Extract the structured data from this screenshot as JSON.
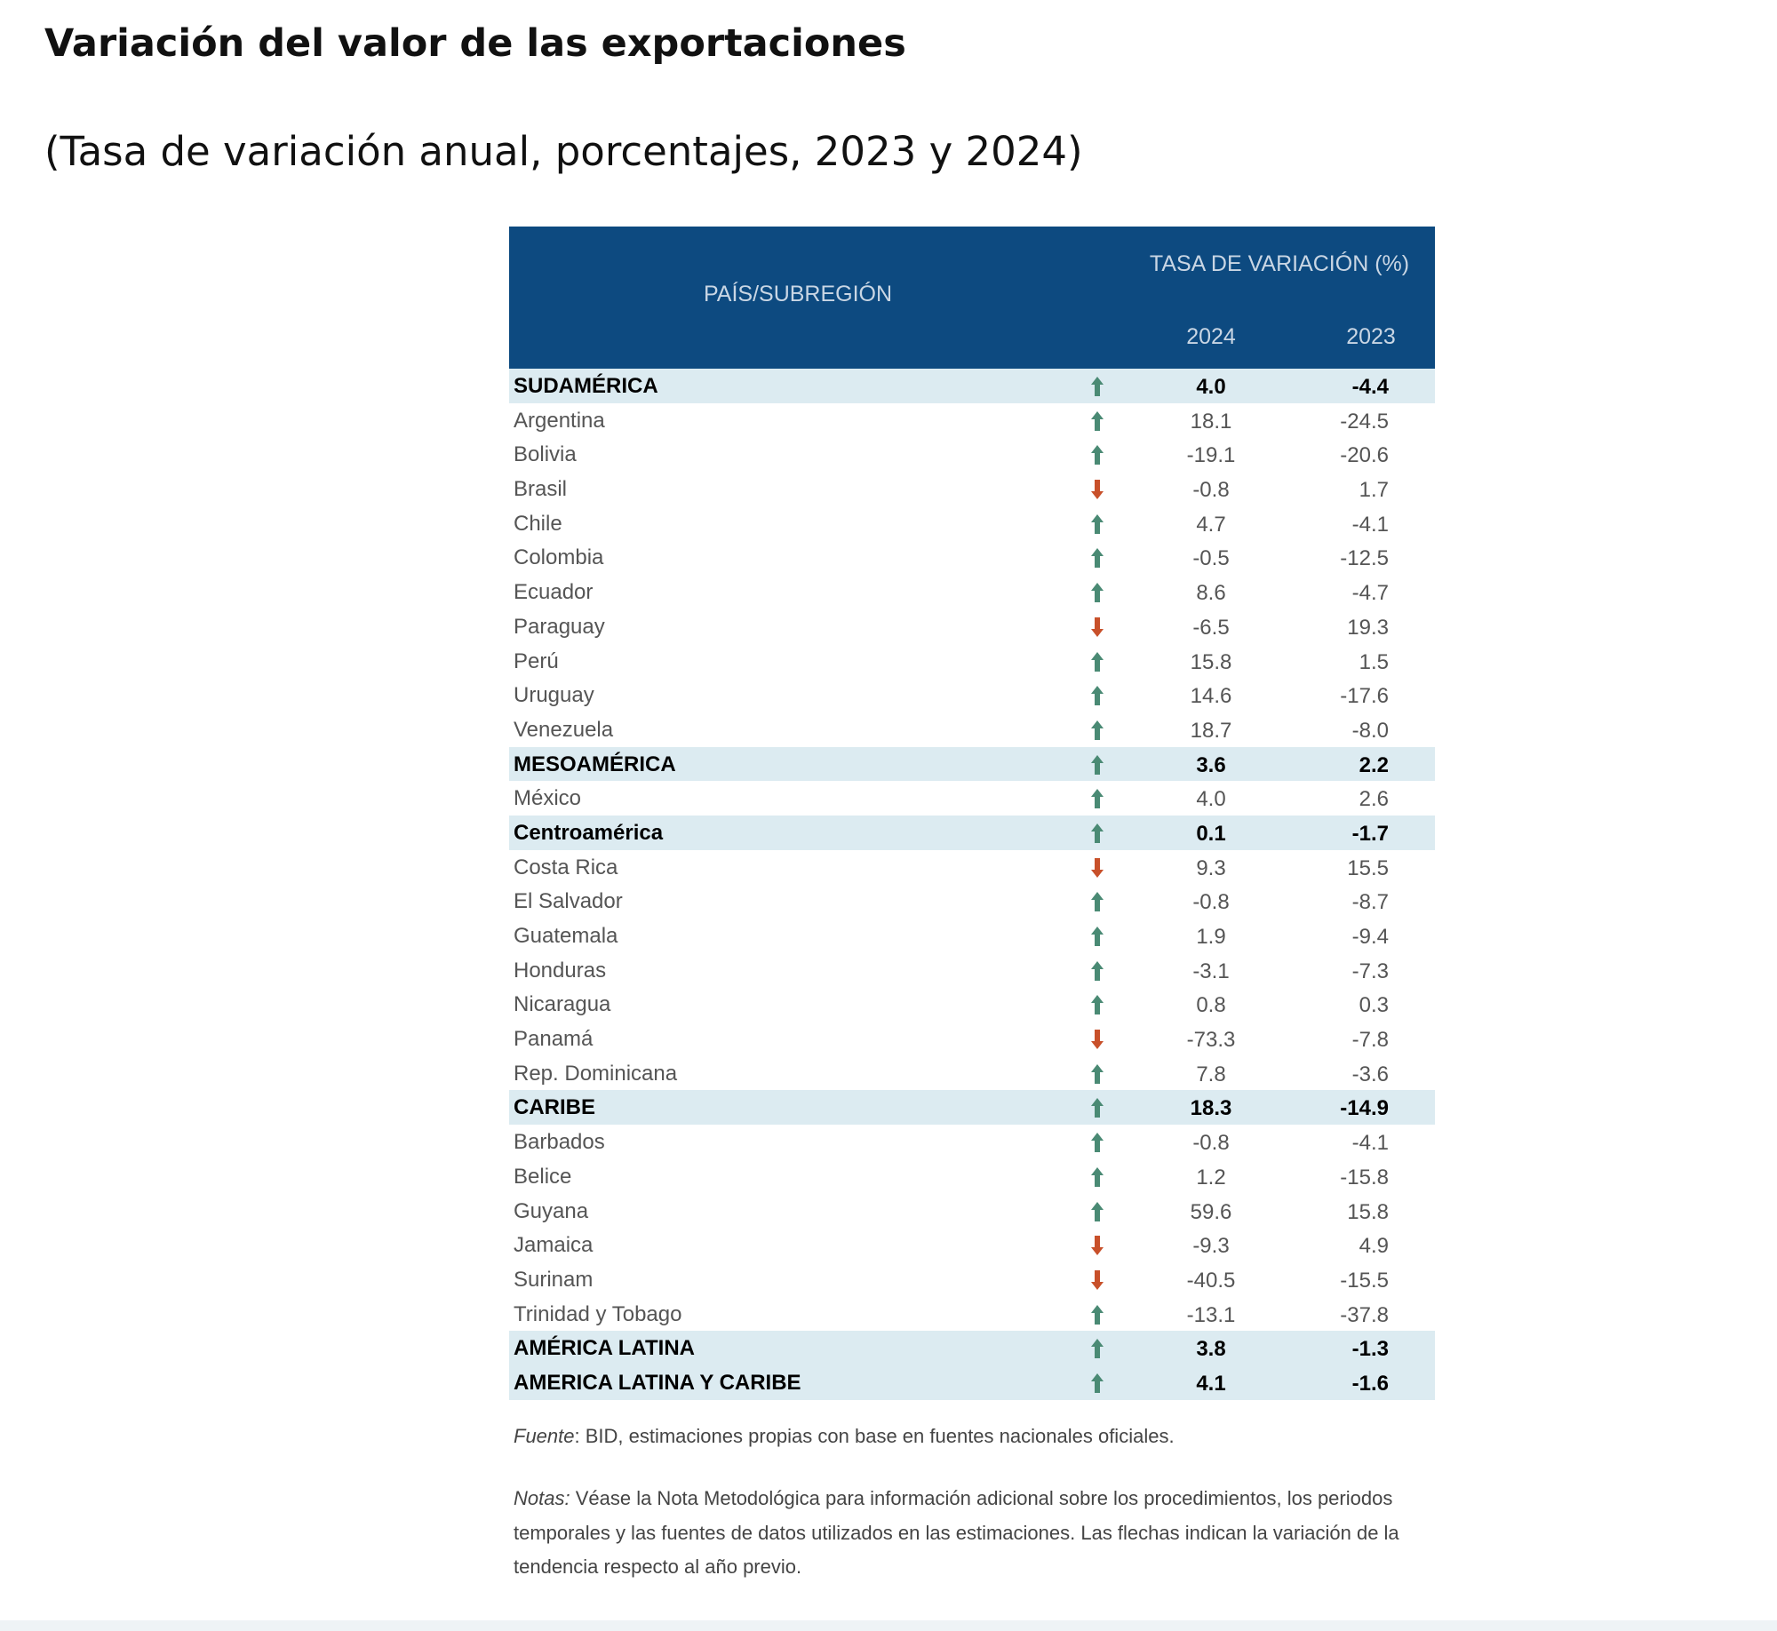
{
  "title": "Variación del valor de las exportaciones",
  "subtitle": "(Tasa de variación anual, porcentajes, 2023 y 2024)",
  "table": {
    "header": {
      "country": "PAÍS/SUBREGIÓN",
      "rate": "TASA DE VARIACIÓN (%)",
      "year_2024": "2024",
      "year_2023": "2023"
    },
    "colors": {
      "header_bg": "#0d4a80",
      "highlight_bg": "#dcebf1",
      "up": "#4a8a74",
      "down": "#c8502a"
    },
    "rows": [
      {
        "name": "SUDAMÉRICA",
        "trend": "up",
        "v2024": "4.0",
        "v2023": "-4.4",
        "highlight": true
      },
      {
        "name": "Argentina",
        "trend": "up",
        "v2024": "18.1",
        "v2023": "-24.5"
      },
      {
        "name": "Bolivia",
        "trend": "up",
        "v2024": "-19.1",
        "v2023": "-20.6"
      },
      {
        "name": "Brasil",
        "trend": "down",
        "v2024": "-0.8",
        "v2023": "1.7"
      },
      {
        "name": "Chile",
        "trend": "up",
        "v2024": "4.7",
        "v2023": "-4.1"
      },
      {
        "name": "Colombia",
        "trend": "up",
        "v2024": "-0.5",
        "v2023": "-12.5"
      },
      {
        "name": "Ecuador",
        "trend": "up",
        "v2024": "8.6",
        "v2023": "-4.7"
      },
      {
        "name": "Paraguay",
        "trend": "down",
        "v2024": "-6.5",
        "v2023": "19.3"
      },
      {
        "name": "Perú",
        "trend": "up",
        "v2024": "15.8",
        "v2023": "1.5"
      },
      {
        "name": "Uruguay",
        "trend": "up",
        "v2024": "14.6",
        "v2023": "-17.6"
      },
      {
        "name": "Venezuela",
        "trend": "up",
        "v2024": "18.7",
        "v2023": "-8.0"
      },
      {
        "name": "MESOAMÉRICA",
        "trend": "up",
        "v2024": "3.6",
        "v2023": "2.2",
        "highlight": true
      },
      {
        "name": "México",
        "trend": "up",
        "v2024": "4.0",
        "v2023": "2.6"
      },
      {
        "name": "Centroamérica",
        "trend": "up",
        "v2024": "0.1",
        "v2023": "-1.7",
        "highlight": true
      },
      {
        "name": "Costa Rica",
        "trend": "down",
        "v2024": "9.3",
        "v2023": "15.5"
      },
      {
        "name": "El Salvador",
        "trend": "up",
        "v2024": "-0.8",
        "v2023": "-8.7"
      },
      {
        "name": "Guatemala",
        "trend": "up",
        "v2024": "1.9",
        "v2023": "-9.4"
      },
      {
        "name": "Honduras",
        "trend": "up",
        "v2024": "-3.1",
        "v2023": "-7.3"
      },
      {
        "name": "Nicaragua",
        "trend": "up",
        "v2024": "0.8",
        "v2023": "0.3"
      },
      {
        "name": "Panamá",
        "trend": "down",
        "v2024": "-73.3",
        "v2023": "-7.8"
      },
      {
        "name": "Rep. Dominicana",
        "trend": "up",
        "v2024": "7.8",
        "v2023": "-3.6"
      },
      {
        "name": "CARIBE",
        "trend": "up",
        "v2024": "18.3",
        "v2023": "-14.9",
        "highlight": true
      },
      {
        "name": "Barbados",
        "trend": "up",
        "v2024": "-0.8",
        "v2023": "-4.1"
      },
      {
        "name": "Belice",
        "trend": "up",
        "v2024": "1.2",
        "v2023": "-15.8"
      },
      {
        "name": "Guyana",
        "trend": "up",
        "v2024": "59.6",
        "v2023": "15.8"
      },
      {
        "name": "Jamaica",
        "trend": "down",
        "v2024": "-9.3",
        "v2023": "4.9"
      },
      {
        "name": "Surinam",
        "trend": "down",
        "v2024": "-40.5",
        "v2023": "-15.5"
      },
      {
        "name": "Trinidad y Tobago",
        "trend": "up",
        "v2024": "-13.1",
        "v2023": "-37.8"
      },
      {
        "name": "AMÉRICA LATINA",
        "trend": "up",
        "v2024": "3.8",
        "v2023": "-1.3",
        "highlight": true
      },
      {
        "name": "AMERICA LATINA Y CARIBE",
        "trend": "up",
        "v2024": "4.1",
        "v2023": "-1.6",
        "highlight": true
      }
    ]
  },
  "source": {
    "label": "Fuente",
    "text": ": BID, estimaciones propias con base en fuentes nacionales oficiales."
  },
  "notes": {
    "label": "Notas:",
    "text": " Véase la Nota Metodológica para información adicional sobre los procedimientos, los periodos temporales y las fuentes de datos utilizados en las estimaciones. Las flechas indican la variación de la tendencia respecto al año previo."
  }
}
